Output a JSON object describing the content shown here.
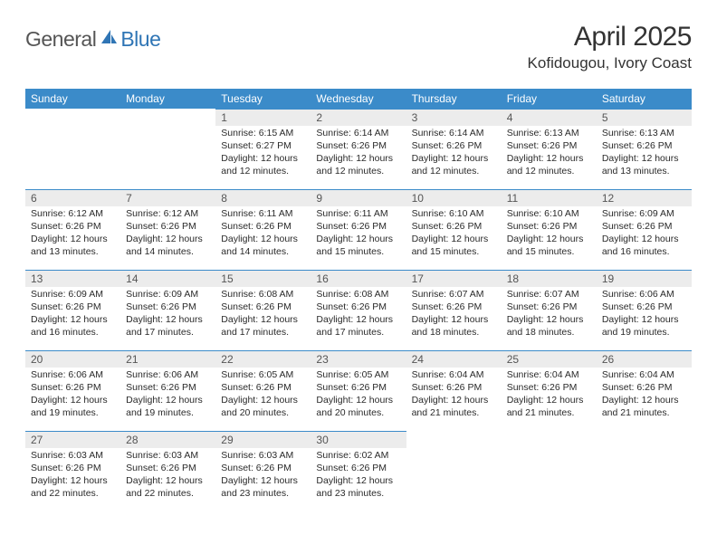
{
  "logo": {
    "general": "General",
    "blue": "Blue"
  },
  "title": "April 2025",
  "location": "Kofidougou, Ivory Coast",
  "colors": {
    "header_bg": "#3b8bc9",
    "header_fg": "#ffffff",
    "daynum_bg": "#ececec",
    "daynum_fg": "#555555",
    "row_border": "#3b8bc9",
    "logo_blue": "#2f75b5",
    "logo_gray": "#555555"
  },
  "weekdays": [
    "Sunday",
    "Monday",
    "Tuesday",
    "Wednesday",
    "Thursday",
    "Friday",
    "Saturday"
  ],
  "weeks": [
    [
      null,
      null,
      {
        "n": "1",
        "sr": "6:15 AM",
        "ss": "6:27 PM",
        "dl": "12 hours and 12 minutes."
      },
      {
        "n": "2",
        "sr": "6:14 AM",
        "ss": "6:26 PM",
        "dl": "12 hours and 12 minutes."
      },
      {
        "n": "3",
        "sr": "6:14 AM",
        "ss": "6:26 PM",
        "dl": "12 hours and 12 minutes."
      },
      {
        "n": "4",
        "sr": "6:13 AM",
        "ss": "6:26 PM",
        "dl": "12 hours and 12 minutes."
      },
      {
        "n": "5",
        "sr": "6:13 AM",
        "ss": "6:26 PM",
        "dl": "12 hours and 13 minutes."
      }
    ],
    [
      {
        "n": "6",
        "sr": "6:12 AM",
        "ss": "6:26 PM",
        "dl": "12 hours and 13 minutes."
      },
      {
        "n": "7",
        "sr": "6:12 AM",
        "ss": "6:26 PM",
        "dl": "12 hours and 14 minutes."
      },
      {
        "n": "8",
        "sr": "6:11 AM",
        "ss": "6:26 PM",
        "dl": "12 hours and 14 minutes."
      },
      {
        "n": "9",
        "sr": "6:11 AM",
        "ss": "6:26 PM",
        "dl": "12 hours and 15 minutes."
      },
      {
        "n": "10",
        "sr": "6:10 AM",
        "ss": "6:26 PM",
        "dl": "12 hours and 15 minutes."
      },
      {
        "n": "11",
        "sr": "6:10 AM",
        "ss": "6:26 PM",
        "dl": "12 hours and 15 minutes."
      },
      {
        "n": "12",
        "sr": "6:09 AM",
        "ss": "6:26 PM",
        "dl": "12 hours and 16 minutes."
      }
    ],
    [
      {
        "n": "13",
        "sr": "6:09 AM",
        "ss": "6:26 PM",
        "dl": "12 hours and 16 minutes."
      },
      {
        "n": "14",
        "sr": "6:09 AM",
        "ss": "6:26 PM",
        "dl": "12 hours and 17 minutes."
      },
      {
        "n": "15",
        "sr": "6:08 AM",
        "ss": "6:26 PM",
        "dl": "12 hours and 17 minutes."
      },
      {
        "n": "16",
        "sr": "6:08 AM",
        "ss": "6:26 PM",
        "dl": "12 hours and 17 minutes."
      },
      {
        "n": "17",
        "sr": "6:07 AM",
        "ss": "6:26 PM",
        "dl": "12 hours and 18 minutes."
      },
      {
        "n": "18",
        "sr": "6:07 AM",
        "ss": "6:26 PM",
        "dl": "12 hours and 18 minutes."
      },
      {
        "n": "19",
        "sr": "6:06 AM",
        "ss": "6:26 PM",
        "dl": "12 hours and 19 minutes."
      }
    ],
    [
      {
        "n": "20",
        "sr": "6:06 AM",
        "ss": "6:26 PM",
        "dl": "12 hours and 19 minutes."
      },
      {
        "n": "21",
        "sr": "6:06 AM",
        "ss": "6:26 PM",
        "dl": "12 hours and 19 minutes."
      },
      {
        "n": "22",
        "sr": "6:05 AM",
        "ss": "6:26 PM",
        "dl": "12 hours and 20 minutes."
      },
      {
        "n": "23",
        "sr": "6:05 AM",
        "ss": "6:26 PM",
        "dl": "12 hours and 20 minutes."
      },
      {
        "n": "24",
        "sr": "6:04 AM",
        "ss": "6:26 PM",
        "dl": "12 hours and 21 minutes."
      },
      {
        "n": "25",
        "sr": "6:04 AM",
        "ss": "6:26 PM",
        "dl": "12 hours and 21 minutes."
      },
      {
        "n": "26",
        "sr": "6:04 AM",
        "ss": "6:26 PM",
        "dl": "12 hours and 21 minutes."
      }
    ],
    [
      {
        "n": "27",
        "sr": "6:03 AM",
        "ss": "6:26 PM",
        "dl": "12 hours and 22 minutes."
      },
      {
        "n": "28",
        "sr": "6:03 AM",
        "ss": "6:26 PM",
        "dl": "12 hours and 22 minutes."
      },
      {
        "n": "29",
        "sr": "6:03 AM",
        "ss": "6:26 PM",
        "dl": "12 hours and 23 minutes."
      },
      {
        "n": "30",
        "sr": "6:02 AM",
        "ss": "6:26 PM",
        "dl": "12 hours and 23 minutes."
      },
      null,
      null,
      null
    ]
  ],
  "labels": {
    "sunrise": "Sunrise:",
    "sunset": "Sunset:",
    "daylight": "Daylight:"
  }
}
